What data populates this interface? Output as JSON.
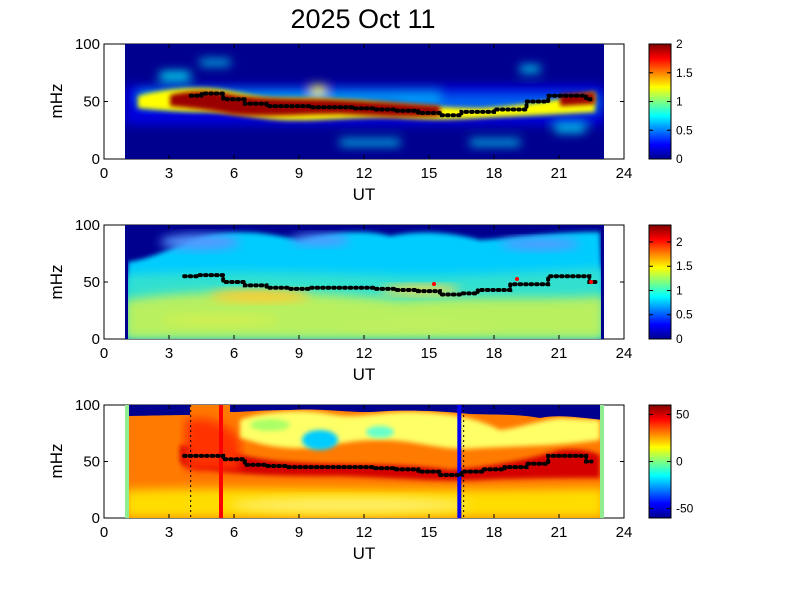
{
  "figure": {
    "title": "2025 Oct 11"
  },
  "chart_data": [
    {
      "type": "heatmap",
      "xlabel": "UT",
      "ylabel": "mHz",
      "xlim": [
        0,
        24
      ],
      "ylim": [
        0,
        100
      ],
      "xticks": [
        "0",
        "3",
        "6",
        "9",
        "12",
        "15",
        "18",
        "21",
        "24"
      ],
      "yticks": [
        "0",
        "50",
        "100"
      ],
      "data_range_ut": [
        1,
        23
      ],
      "colorbar": {
        "min": 0,
        "max": 2,
        "ticks": [
          "0",
          "0.5",
          "1",
          "1.5",
          "2"
        ]
      },
      "peak_track": [
        [
          4,
          55
        ],
        [
          5,
          57
        ],
        [
          6,
          52
        ],
        [
          7,
          48
        ],
        [
          8,
          46
        ],
        [
          9,
          46
        ],
        [
          10,
          45
        ],
        [
          11,
          45
        ],
        [
          12,
          44
        ],
        [
          13,
          43
        ],
        [
          14,
          42
        ],
        [
          15,
          40
        ],
        [
          16,
          38
        ],
        [
          17,
          41
        ],
        [
          19,
          43
        ],
        [
          20,
          50
        ],
        [
          21,
          55
        ],
        [
          22,
          55
        ],
        [
          22.5,
          52
        ]
      ]
    },
    {
      "type": "heatmap",
      "xlabel": "UT",
      "ylabel": "mHz",
      "xlim": [
        0,
        24
      ],
      "ylim": [
        0,
        100
      ],
      "xticks": [
        "0",
        "3",
        "6",
        "9",
        "12",
        "15",
        "18",
        "21",
        "24"
      ],
      "yticks": [
        "0",
        "50",
        "100"
      ],
      "data_range_ut": [
        1,
        23
      ],
      "colorbar": {
        "min": 0,
        "max": 2.35,
        "ticks": [
          "0",
          "0.5",
          "1",
          "1.5",
          "2"
        ]
      },
      "peak_track": [
        [
          3.7,
          55
        ],
        [
          5,
          56
        ],
        [
          6,
          50
        ],
        [
          7,
          47
        ],
        [
          8,
          45
        ],
        [
          9,
          44
        ],
        [
          10,
          45
        ],
        [
          11,
          45
        ],
        [
          12,
          45
        ],
        [
          13,
          44
        ],
        [
          14,
          43
        ],
        [
          15,
          42
        ],
        [
          16,
          39
        ],
        [
          17,
          40
        ],
        [
          17.5,
          43
        ],
        [
          20,
          48
        ],
        [
          21,
          55
        ],
        [
          22,
          55
        ],
        [
          22.8,
          50
        ]
      ]
    },
    {
      "type": "heatmap",
      "xlabel": "UT",
      "ylabel": "mHz",
      "xlim": [
        0,
        24
      ],
      "ylim": [
        0,
        100
      ],
      "xticks": [
        "0",
        "3",
        "6",
        "9",
        "12",
        "15",
        "18",
        "21",
        "24"
      ],
      "yticks": [
        "0",
        "50",
        "100"
      ],
      "data_range_ut": [
        1,
        23
      ],
      "colorbar": {
        "min": -60,
        "max": 60,
        "ticks": [
          "-50",
          "0",
          "50"
        ]
      },
      "markers": [
        {
          "ut": 5.4,
          "color": "#ff0000"
        },
        {
          "ut": 16.4,
          "color": "#0000ff"
        }
      ],
      "dotted_markers_ut": [
        4.0,
        16.6
      ],
      "peak_track": [
        [
          3.7,
          55
        ],
        [
          5,
          55
        ],
        [
          6,
          52
        ],
        [
          7,
          47
        ],
        [
          8,
          46
        ],
        [
          9,
          45
        ],
        [
          10,
          45
        ],
        [
          11,
          45
        ],
        [
          12,
          45
        ],
        [
          13,
          44
        ],
        [
          14,
          43
        ],
        [
          15,
          41
        ],
        [
          16,
          38
        ],
        [
          17,
          41
        ],
        [
          18,
          43
        ],
        [
          19,
          45
        ],
        [
          20,
          48
        ],
        [
          21,
          55
        ],
        [
          22,
          55
        ],
        [
          22.5,
          50
        ]
      ]
    }
  ]
}
